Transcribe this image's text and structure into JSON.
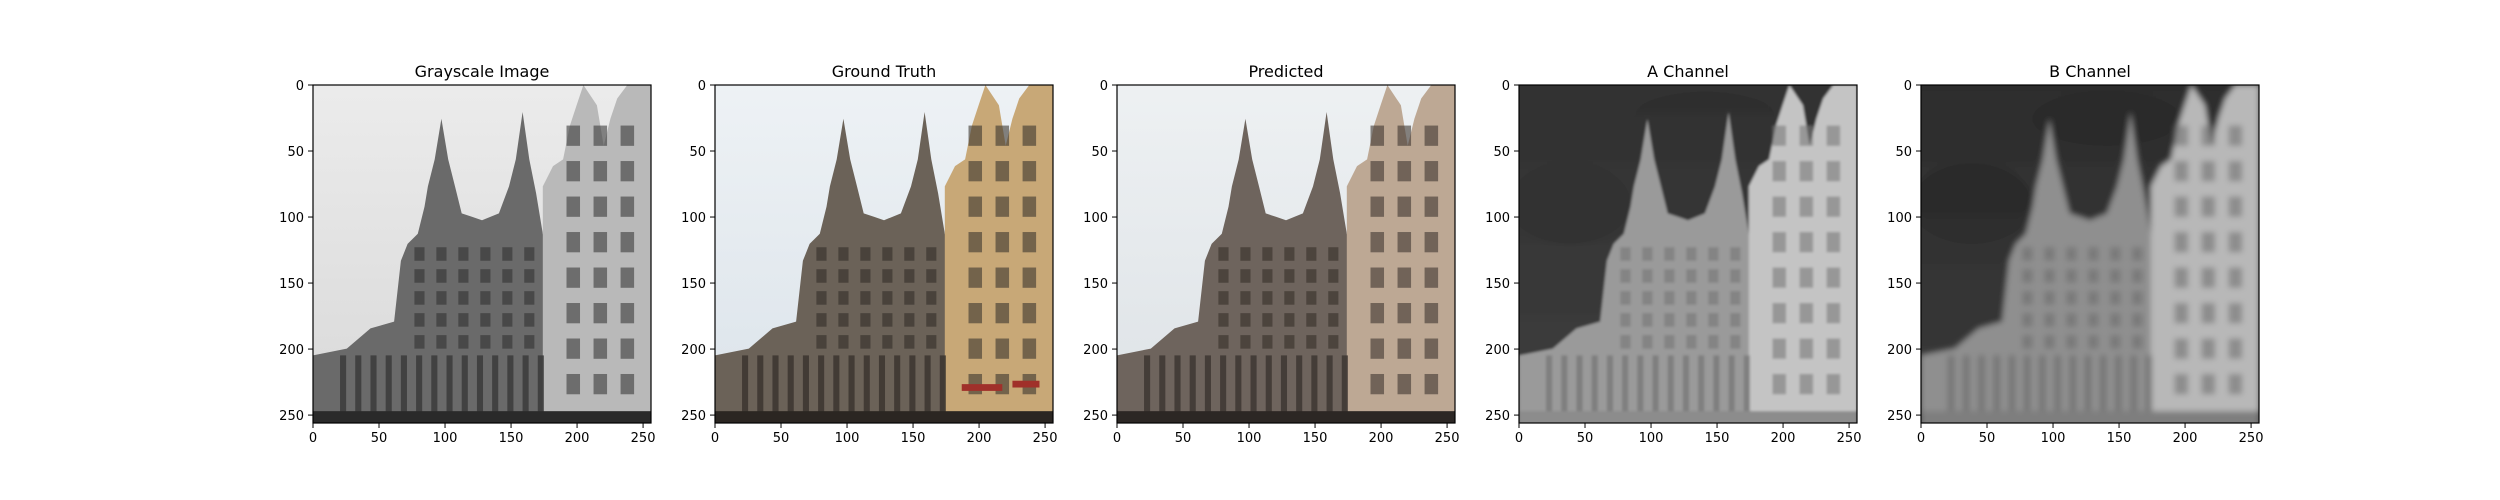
{
  "figure": {
    "background": "#ffffff",
    "panels": [
      {
        "id": "grayscale",
        "title": "Grayscale Image",
        "image_kind": "grayscale-photo",
        "xticks": [
          "0",
          "50",
          "100",
          "150",
          "200",
          "250"
        ],
        "yticks": [
          "0",
          "50",
          "100",
          "150",
          "200",
          "250"
        ],
        "extent": [
          0,
          256
        ],
        "colors": {
          "sky": "#d8d8d8",
          "sky_top": "#ececec",
          "building": "#6a6a6a",
          "building_dark": "#3a3a3a",
          "building_light": "#b9b9b9",
          "ground": "#2a2a2a"
        }
      },
      {
        "id": "ground-truth",
        "title": "Ground Truth",
        "image_kind": "color-photo",
        "xticks": [
          "0",
          "50",
          "100",
          "150",
          "200",
          "250"
        ],
        "yticks": [
          "0",
          "50",
          "100",
          "150",
          "200",
          "250"
        ],
        "extent": [
          0,
          256
        ],
        "colors": {
          "sky": "#dbe3ea",
          "sky_top": "#eef2f5",
          "building": "#6b6258",
          "building_dark": "#3b352f",
          "building_light": "#c8a877",
          "ground": "#2b2622",
          "accent": "#a0302a"
        }
      },
      {
        "id": "predicted",
        "title": "Predicted",
        "image_kind": "color-photo",
        "xticks": [
          "0",
          "50",
          "100",
          "150",
          "200",
          "250"
        ],
        "yticks": [
          "0",
          "50",
          "100",
          "150",
          "200",
          "250"
        ],
        "extent": [
          0,
          256
        ],
        "colors": {
          "sky": "#dde2e6",
          "sky_top": "#eef1f3",
          "building": "#6e645d",
          "building_dark": "#3d3631",
          "building_light": "#bda894",
          "ground": "#2c2724"
        }
      },
      {
        "id": "a-channel",
        "title": "A Channel",
        "image_kind": "channel-map",
        "xticks": [
          "0",
          "50",
          "100",
          "150",
          "200",
          "250"
        ],
        "yticks": [
          "0",
          "50",
          "100",
          "150",
          "200",
          "250"
        ],
        "extent": [
          0,
          256
        ],
        "colors": {
          "sky": "#3e3e3e",
          "sky_top": "#303030",
          "building": "#9a9a9a",
          "building_dark": "#7a7a7a",
          "building_light": "#c4c4c4",
          "ground": "#8c8c8c"
        }
      },
      {
        "id": "b-channel",
        "title": "B Channel",
        "image_kind": "channel-map-blurred",
        "xticks": [
          "0",
          "50",
          "100",
          "150",
          "200",
          "250"
        ],
        "yticks": [
          "0",
          "50",
          "100",
          "150",
          "200",
          "250"
        ],
        "extent": [
          0,
          256
        ],
        "colors": {
          "sky": "#3a3a3a",
          "sky_top": "#2c2c2c",
          "building": "#8f8f8f",
          "building_dark": "#6f6f6f",
          "building_light": "#b8b8b8",
          "ground": "#7e7e7e"
        }
      }
    ]
  }
}
